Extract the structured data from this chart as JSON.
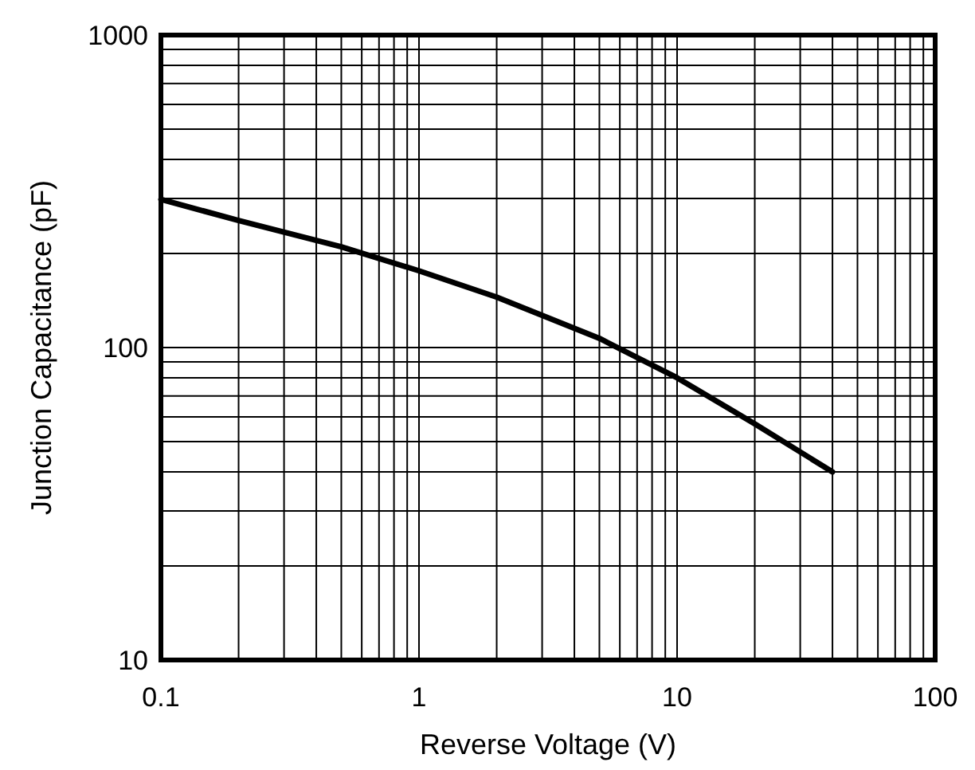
{
  "chart_data": {
    "type": "line",
    "xlabel": "Reverse Voltage (V)",
    "ylabel": "Junction Capacitance (pF)",
    "log": "xy",
    "grid": true,
    "xlim": [
      0.1,
      100
    ],
    "ylim": [
      10,
      1000
    ],
    "xticks": [
      0.1,
      1,
      10,
      100
    ],
    "yticks": [
      10,
      100,
      1000
    ],
    "series": [
      {
        "color": "#000000",
        "x": [
          0.1,
          0.2,
          0.5,
          1,
          2,
          5,
          10,
          20,
          40
        ],
        "values": [
          298,
          255,
          210,
          176,
          145,
          107,
          80,
          57,
          40
        ]
      }
    ]
  }
}
